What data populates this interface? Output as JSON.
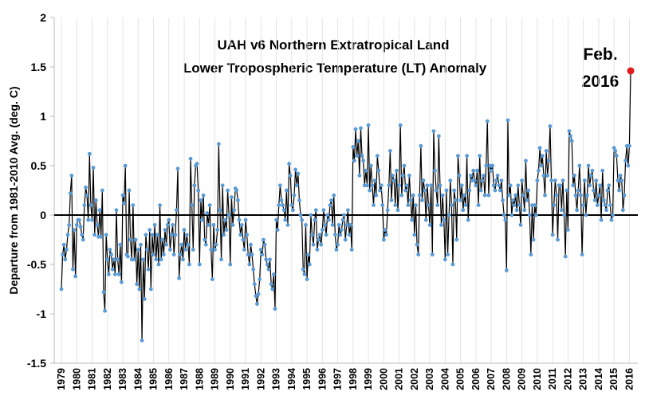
{
  "chart_data": {
    "type": "line",
    "title": [
      "UAH v6  Northern Extratropical Land",
      "Lower Tropospheric Temperature (LT) Anomaly"
    ],
    "annotation": [
      "Feb.",
      "2016"
    ],
    "y_label": "Departure from 1981-2010 Avg. (deg. C)",
    "ylim": [
      -1.5,
      2
    ],
    "yticks": [
      -1.5,
      -1,
      -0.5,
      0,
      0.5,
      1,
      1.5,
      2
    ],
    "year_labels": [
      1979,
      1980,
      1981,
      1982,
      1983,
      1984,
      1985,
      1986,
      1987,
      1988,
      1989,
      1990,
      1991,
      1992,
      1993,
      1994,
      1995,
      1996,
      1997,
      1998,
      1999,
      2000,
      2001,
      2002,
      2003,
      2004,
      2005,
      2006,
      2007,
      2008,
      2009,
      2010,
      2011,
      2012,
      2013,
      2014,
      2015,
      2016
    ],
    "line_color": "#000000",
    "highlight_color": "#e31a1c",
    "series": [
      {
        "color": "#5b9bd5",
        "values": [
          -0.75,
          -0.4,
          -0.3,
          -0.45,
          -0.35,
          -0.2,
          -0.1,
          0.22,
          0.4,
          -0.55,
          -0.15,
          -0.62,
          -0.1,
          -0.05,
          -0.05,
          -0.12,
          -0.2,
          -0.25,
          0.1,
          0.28,
          0.2,
          -0.05,
          0.62,
          0.1,
          -0.05,
          0.48,
          -0.2,
          0.15,
          -0.1,
          -0.22,
          0.05,
          -0.22,
          0.25,
          -0.78,
          -0.97,
          -0.2,
          -0.45,
          -0.6,
          -0.35,
          -0.4,
          -0.55,
          -0.45,
          -0.6,
          0.05,
          -0.45,
          -0.6,
          -0.3,
          -0.68,
          0.2,
          0.12,
          0.5,
          -0.4,
          -0.42,
          0.25,
          -0.25,
          -0.45,
          0.1,
          -0.45,
          -0.25,
          -0.7,
          -0.35,
          -0.75,
          -0.3,
          -1.27,
          -0.45,
          -0.85,
          -0.2,
          -0.35,
          -0.55,
          -0.15,
          -0.75,
          -0.2,
          -0.4,
          -0.1,
          -0.45,
          -0.2,
          -0.5,
          0.1,
          -0.45,
          -0.25,
          -0.4,
          -0.15,
          -0.3,
          -0.1,
          -0.05,
          -0.35,
          -0.2,
          -0.1,
          -0.4,
          -0.2,
          0.05,
          0.47,
          -0.64,
          -0.4,
          -0.3,
          -0.45,
          -0.15,
          -0.35,
          -0.2,
          -0.3,
          -0.5,
          0.57,
          0.1,
          -0.35,
          0.3,
          0.5,
          0.52,
          0.25,
          -0.5,
          0.15,
          -0.05,
          0.2,
          -0.25,
          -0.3,
          0.02,
          -0.1,
          0.1,
          -0.35,
          -0.65,
          -0.1,
          -0.35,
          -0.3,
          -0.15,
          0.72,
          0.05,
          -0.45,
          0.3,
          -0.2,
          -0.05,
          -0.15,
          0.25,
          0.0,
          -0.5,
          0.18,
          -0.1,
          0.05,
          0.27,
          0.25,
          0.15,
          -0.05,
          -0.2,
          -0.1,
          -0.25,
          -0.35,
          -0.05,
          -0.2,
          -0.4,
          -0.5,
          -0.3,
          -0.4,
          -0.55,
          -0.7,
          -0.82,
          -0.9,
          -0.8,
          -0.65,
          -0.35,
          -0.4,
          -0.25,
          -0.3,
          -0.45,
          -0.5,
          -0.55,
          -0.45,
          -0.7,
          -0.75,
          -0.6,
          -0.95,
          -0.05,
          -0.15,
          0.1,
          0.3,
          0.15,
          0.1,
          0.05,
          -0.05,
          0.25,
          -0.1,
          0.52,
          0.4,
          0.1,
          0.05,
          0.2,
          0.46,
          0.3,
          0.42,
          0.15,
          0.0,
          -0.05,
          -0.55,
          -0.6,
          -0.1,
          -0.65,
          -0.4,
          -0.5,
          0.0,
          -0.2,
          -0.3,
          -0.05,
          0.05,
          -0.35,
          -0.25,
          -0.2,
          -0.3,
          -0.15,
          0.05,
          -0.1,
          -0.2,
          0.0,
          -0.05,
          0.1,
          0.15,
          -0.1,
          0.2,
          -0.2,
          -0.35,
          -0.3,
          -0.1,
          -0.2,
          -0.15,
          -0.05,
          0.0,
          -0.25,
          -0.1,
          0.05,
          -0.2,
          -0.1,
          -0.35,
          0.69,
          0.55,
          0.87,
          0.6,
          0.75,
          0.4,
          0.88,
          0.6,
          0.55,
          0.3,
          0.45,
          0.3,
          0.91,
          0.25,
          0.5,
          0.3,
          0.1,
          0.35,
          0.2,
          0.6,
          0.45,
          0.25,
          0.3,
          0.1,
          -0.25,
          -0.15,
          -0.2,
          0.05,
          0.3,
          0.65,
          0.15,
          0.4,
          0.35,
          0.1,
          0.45,
          0.05,
          0.3,
          0.91,
          0.2,
          0.4,
          0.5,
          0.25,
          0.3,
          0.1,
          0.4,
          0.15,
          -0.05,
          0.2,
          -0.2,
          0.1,
          -0.3,
          -0.4,
          0.2,
          0.7,
          0.15,
          0.35,
          0.25,
          -0.05,
          0.3,
          0.1,
          -0.1,
          0.3,
          -0.4,
          0.85,
          0.45,
          0.25,
          0.1,
          0.8,
          0.3,
          -0.1,
          0.2,
          -0.05,
          -0.45,
          0.25,
          -0.4,
          0.0,
          0.35,
          0.1,
          -0.5,
          0.25,
          0.15,
          -0.25,
          0.6,
          0.4,
          0.15,
          0.3,
          0.05,
          0.2,
          0.1,
          0.6,
          -0.05,
          0.25,
          0.4,
          0.35,
          0.45,
          0.35,
          0.3,
          0.45,
          0.1,
          0.6,
          0.25,
          0.35,
          0.4,
          0.2,
          0.5,
          0.95,
          0.2,
          0.5,
          0.45,
          0.5,
          0.3,
          0.25,
          0.35,
          0.4,
          0.3,
          0.25,
          0.35,
          0.15,
          0.0,
          -0.05,
          -0.56,
          0.96,
          0.2,
          0.3,
          0.0,
          0.15,
          0.1,
          0.2,
          0.05,
          0.3,
          0.1,
          -0.1,
          0.35,
          0.2,
          0.05,
          0.55,
          0.15,
          0.25,
          0.0,
          -0.4,
          0.1,
          -0.25,
          0.1,
          0.0,
          0.35,
          0.45,
          0.68,
          0.5,
          0.6,
          0.4,
          0.2,
          0.65,
          0.4,
          0.55,
          0.9,
          0.35,
          -0.2,
          0.1,
          0.35,
          0.2,
          -0.25,
          0.3,
          0.3,
          0.05,
          0.35,
          0.0,
          -0.42,
          0.25,
          -0.15,
          0.85,
          0.8,
          0.75,
          0.3,
          0.4,
          0.2,
          0.05,
          0.25,
          0.5,
          0.2,
          -0.4,
          0.1,
          0.35,
          0.0,
          0.2,
          0.5,
          0.3,
          0.4,
          0.45,
          0.25,
          0.15,
          0.35,
          0.1,
          0.2,
          0.3,
          -0.05,
          0.45,
          0.15,
          0.1,
          0.05,
          0.25,
          0.3,
          0.1,
          -0.05,
          0.0,
          0.68,
          0.65,
          0.6,
          0.35,
          0.25,
          0.4,
          0.35,
          0.05,
          0.2,
          0.55,
          0.7,
          0.5,
          0.7,
          1.46
        ]
      }
    ]
  }
}
